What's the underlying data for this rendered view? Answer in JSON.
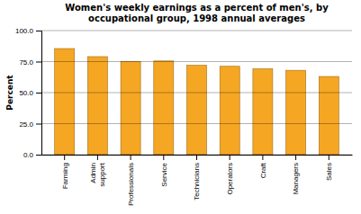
{
  "chart_data": {
    "type": "bar",
    "title": "Women's weekly earnings as a percent of men's, by\noccupational group, 1998 annual averages",
    "categories": [
      "Farming",
      "Admin\nsupport",
      "Professionals",
      "Service",
      "Technicians",
      "Operators",
      "Craft",
      "Managers",
      "Sales"
    ],
    "values": [
      85.5,
      79.0,
      75.2,
      75.5,
      72.0,
      71.2,
      69.2,
      68.0,
      63.0
    ],
    "color": "#F5A623",
    "ylabel": "Percent",
    "ylim": [
      0,
      100
    ],
    "yticks": [
      {
        "value": 0.0,
        "label": "0.0"
      },
      {
        "value": 25.0,
        "label": "25.0"
      },
      {
        "value": 50.0,
        "label": "50.0"
      },
      {
        "value": 75.0,
        "label": "75.0"
      },
      {
        "value": 100.0,
        "label": "100.0"
      }
    ],
    "grid": true
  }
}
